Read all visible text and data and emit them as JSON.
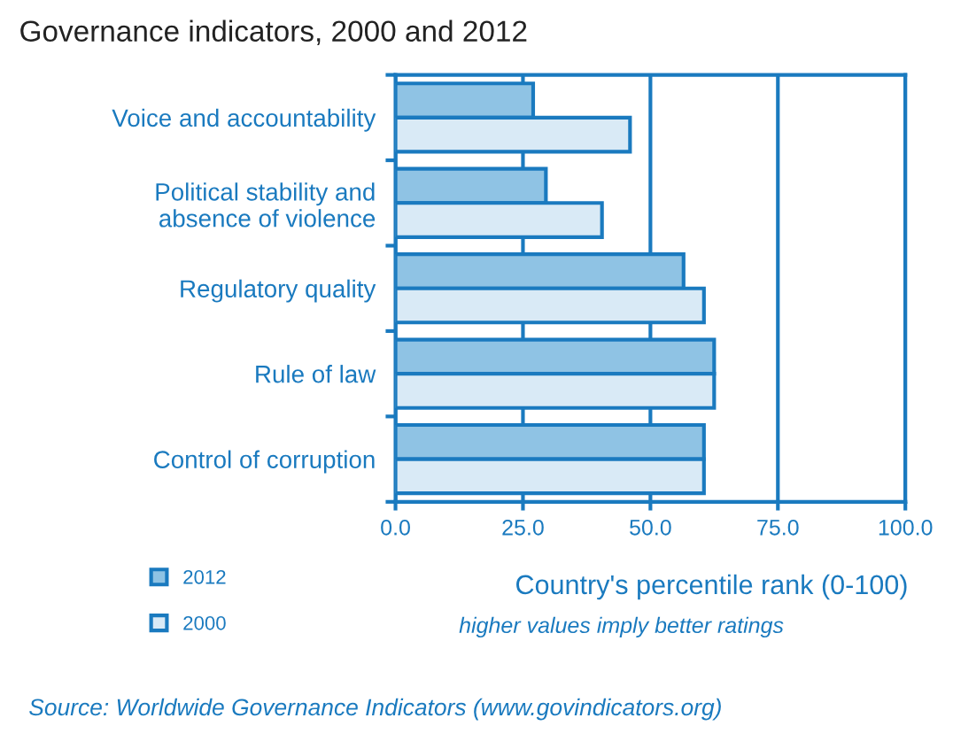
{
  "chart_data": {
    "type": "bar",
    "orientation": "horizontal",
    "title": "Governance indicators, 2000 and 2012",
    "categories": [
      "Voice and accountability",
      "Political stability and\nabsence of violence",
      "Regulatory quality",
      "Rule of law",
      "Control of corruption"
    ],
    "series": [
      {
        "name": "2012",
        "color": "#8fc3e4",
        "values": [
          27,
          29.5,
          56.5,
          62.5,
          60.5
        ]
      },
      {
        "name": "2000",
        "color": "#d9eaf6",
        "values": [
          46,
          40.5,
          60.5,
          62.5,
          60.5
        ]
      }
    ],
    "xlim": [
      0,
      100
    ],
    "xticks": [
      {
        "value": 0,
        "label": "0.0"
      },
      {
        "value": 25,
        "label": "25.0"
      },
      {
        "value": 50,
        "label": "50.0"
      },
      {
        "value": 75,
        "label": "75.0"
      },
      {
        "value": 100,
        "label": "100.0"
      }
    ],
    "xlabel": "Country's percentile rank (0-100)",
    "annotations": [
      "higher values imply better ratings",
      "Source: Worldwide Governance Indicators (www.govindicators.org)"
    ],
    "grid": "x",
    "legend": "bottom left"
  }
}
